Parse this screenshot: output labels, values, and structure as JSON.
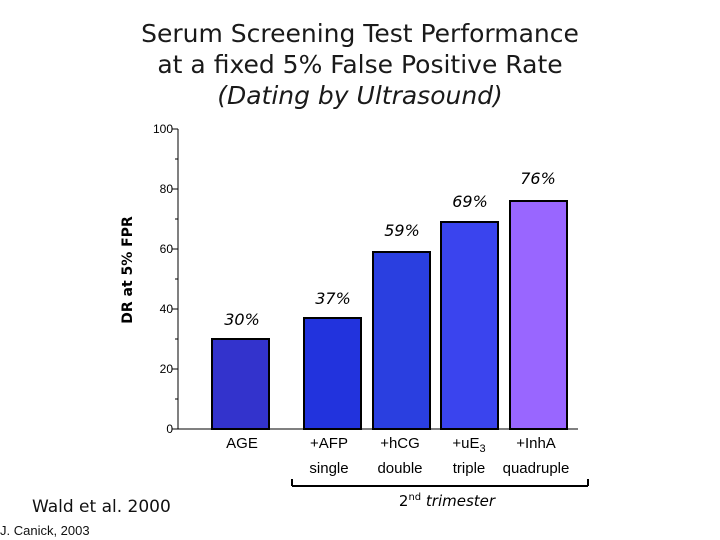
{
  "title": {
    "line1": "Serum Screening Test Performance",
    "line2": "at a fixed 5% False Positive Rate",
    "line3": "(Dating by Ultrasound)"
  },
  "chart_data": {
    "type": "bar",
    "ylabel": "DR at 5% FPR",
    "ylim": [
      0,
      100
    ],
    "yticks": [
      0,
      20,
      40,
      60,
      80,
      100
    ],
    "categories": [
      "AGE",
      "+AFP",
      "+hCG",
      "+uE3",
      "+InhA"
    ],
    "sublabels": [
      "",
      "single",
      "double",
      "triple",
      "quadruple"
    ],
    "values": [
      30,
      37,
      59,
      69,
      76
    ],
    "data_labels": [
      "30%",
      "37%",
      "59%",
      "69%",
      "76%"
    ],
    "colors": [
      "#3333cc",
      "#2233dd",
      "#2a3fe0",
      "#3a44ee",
      "#9966ff"
    ],
    "bracket_label_main": "2",
    "bracket_label_sup": "nd",
    "bracket_label_rest": " trimester"
  },
  "credits": {
    "reference": "Wald et al. 2000",
    "author": "J. Canick, 2003"
  }
}
